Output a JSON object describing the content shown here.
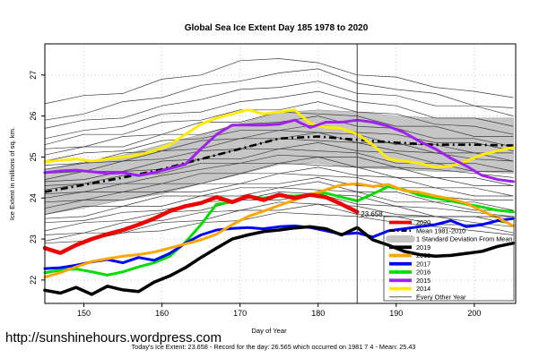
{
  "title": "Global Sea Ice Extent Day 185 1978 to 2020",
  "x_axis": {
    "label": "Day of Year",
    "ticks": [
      150,
      160,
      170,
      180,
      190,
      200
    ]
  },
  "y_axis": {
    "label": "Ice Extent in millions of sq. km.",
    "ticks": [
      22,
      23,
      24,
      25,
      26,
      27
    ]
  },
  "vline_day": 185,
  "annotation": {
    "text": "23.658",
    "day": 185,
    "value": 23.55,
    "color": "#e04040"
  },
  "footer": {
    "url": "http://sunshinehours.wordpress.com",
    "caption": "Today's Ice Extent: 23.658  - Record for the day: 26.565 which occurred on 1981 7 4  - Mean: 25.43"
  },
  "legend": {
    "items": [
      {
        "label": "2020",
        "color": "#f00000",
        "type": "line",
        "width": 4
      },
      {
        "label": "Mean 1981-2010",
        "color": "#000000",
        "type": "dashdot",
        "width": 2.4
      },
      {
        "label": "1 Standard Deviation From Mean",
        "color": "#c6c6c6",
        "type": "band"
      },
      {
        "label": "2019",
        "color": "#000000",
        "type": "line",
        "width": 4
      },
      {
        "label": "2018",
        "color": "#ffa500",
        "type": "line",
        "width": 4
      },
      {
        "label": "2017",
        "color": "#0000ff",
        "type": "line",
        "width": 4
      },
      {
        "label": "2016",
        "color": "#00dd00",
        "type": "line",
        "width": 4
      },
      {
        "label": "2015",
        "color": "#a020f0",
        "type": "line",
        "width": 4
      },
      {
        "label": "2014",
        "color": "#ffec00",
        "type": "line",
        "width": 4
      },
      {
        "label": "Every Other Year",
        "color": "#555555",
        "type": "thin",
        "width": 1
      }
    ]
  },
  "chart_data": {
    "type": "line",
    "title": "Global Sea Ice Extent Day 185 1978 to 2020",
    "xlabel": "Day of Year",
    "ylabel": "Ice Extent in millions of sq. km.",
    "xlim": [
      145,
      205.3
    ],
    "ylim": [
      21.43,
      27.76
    ],
    "grid": true,
    "legend_position": "bottom-right-inside",
    "days": [
      145,
      147,
      149,
      151,
      153,
      155,
      157,
      159,
      161,
      163,
      165,
      167,
      169,
      171,
      173,
      175,
      177,
      179,
      181,
      183,
      185,
      187,
      189,
      191,
      193,
      195,
      197,
      199,
      201,
      203,
      205
    ],
    "band": {
      "name": "1 Standard Deviation From Mean",
      "color": "#c6c6c6",
      "x": [
        145,
        150,
        155,
        160,
        165,
        170,
        175,
        180,
        185,
        190,
        195,
        200,
        205
      ],
      "top": [
        24.7,
        24.88,
        25.05,
        25.3,
        25.55,
        25.82,
        26.08,
        26.15,
        26.1,
        26.0,
        25.95,
        25.95,
        25.95
      ],
      "bottom": [
        23.6,
        23.76,
        23.95,
        24.1,
        24.35,
        24.58,
        24.82,
        24.85,
        24.74,
        24.7,
        24.65,
        24.65,
        24.6
      ]
    },
    "mean": {
      "name": "Mean 1981-2010",
      "color": "#000000",
      "x": [
        145,
        150,
        155,
        160,
        165,
        170,
        175,
        180,
        185,
        190,
        195,
        200,
        205
      ],
      "values": [
        24.15,
        24.32,
        24.5,
        24.7,
        24.95,
        25.2,
        25.45,
        25.5,
        25.42,
        25.35,
        25.3,
        25.3,
        25.28
      ]
    },
    "series": [
      {
        "name": "2014",
        "color": "#ffec00",
        "width": 3,
        "values": [
          24.88,
          24.92,
          24.95,
          24.9,
          24.95,
          25.0,
          25.05,
          25.15,
          25.3,
          25.55,
          25.8,
          25.95,
          26.05,
          26.15,
          26.05,
          26.1,
          26.15,
          25.82,
          25.73,
          25.7,
          25.56,
          25.3,
          24.95,
          24.9,
          24.85,
          24.75,
          24.78,
          24.9,
          25.06,
          25.15,
          25.23
        ]
      },
      {
        "name": "2015",
        "color": "#a020f0",
        "width": 3,
        "values": [
          24.62,
          24.66,
          24.68,
          24.64,
          24.6,
          24.62,
          24.55,
          24.62,
          24.72,
          24.82,
          25.2,
          25.55,
          25.78,
          25.78,
          25.78,
          25.8,
          25.9,
          25.72,
          25.85,
          25.85,
          25.9,
          25.85,
          25.75,
          25.6,
          25.38,
          25.2,
          24.97,
          24.78,
          24.55,
          24.45,
          24.4
        ]
      },
      {
        "name": "2016",
        "color": "#00dd00",
        "width": 3,
        "values": [
          22.18,
          22.24,
          22.27,
          22.2,
          22.12,
          22.2,
          22.32,
          22.42,
          22.58,
          22.92,
          23.35,
          23.85,
          23.9,
          24.05,
          24.0,
          24.05,
          24.05,
          24.08,
          24.12,
          24.02,
          23.93,
          24.1,
          24.28,
          24.2,
          24.07,
          24.0,
          23.93,
          23.85,
          23.78,
          23.7,
          23.66
        ]
      },
      {
        "name": "2017",
        "color": "#0000ff",
        "width": 3,
        "values": [
          22.28,
          22.3,
          22.36,
          22.44,
          22.5,
          22.42,
          22.55,
          22.48,
          22.65,
          22.9,
          23.1,
          23.22,
          23.26,
          23.28,
          23.25,
          23.3,
          23.32,
          23.28,
          23.2,
          23.12,
          23.15,
          23.05,
          23.2,
          23.25,
          23.3,
          23.35,
          23.45,
          23.3,
          23.35,
          23.45,
          23.5
        ]
      },
      {
        "name": "2018",
        "color": "#ffa500",
        "width": 3,
        "values": [
          22.07,
          22.18,
          22.32,
          22.45,
          22.52,
          22.58,
          22.62,
          22.68,
          22.78,
          22.88,
          22.98,
          23.12,
          23.35,
          23.55,
          23.68,
          23.82,
          23.95,
          24.08,
          24.2,
          24.32,
          24.35,
          24.28,
          24.33,
          24.18,
          24.14,
          24.05,
          23.98,
          23.87,
          23.68,
          23.52,
          23.32
        ]
      },
      {
        "name": "2019",
        "color": "#000000",
        "width": 3.5,
        "values": [
          21.75,
          21.68,
          21.82,
          21.65,
          21.85,
          21.76,
          21.72,
          21.95,
          22.1,
          22.3,
          22.55,
          22.78,
          23.0,
          23.1,
          23.18,
          23.22,
          23.27,
          23.3,
          23.25,
          23.1,
          23.28,
          22.98,
          22.85,
          22.7,
          22.62,
          22.58,
          22.6,
          22.65,
          22.7,
          22.82,
          22.9
        ]
      },
      {
        "name": "2020",
        "color": "#f00000",
        "width": 4.5,
        "values": [
          22.78,
          22.66,
          22.85,
          23.0,
          23.12,
          23.22,
          23.35,
          23.5,
          23.68,
          23.8,
          23.88,
          24.02,
          23.9,
          24.05,
          23.95,
          24.08,
          24.0,
          24.08,
          24.02,
          23.85,
          23.658
        ]
      }
    ],
    "other_years": {
      "name": "Every Other Year",
      "color": "#3c3c3c",
      "x": [
        145,
        150,
        155,
        160,
        165,
        170,
        175,
        180,
        185,
        190,
        195,
        200,
        205
      ],
      "lines": [
        [
          26.3,
          26.5,
          26.55,
          26.9,
          27.0,
          27.35,
          27.4,
          27.3,
          27.0,
          26.95,
          26.7,
          26.6,
          26.45
        ],
        [
          25.9,
          26.05,
          26.35,
          26.45,
          26.75,
          26.85,
          27.05,
          27.15,
          26.8,
          26.65,
          26.55,
          26.25,
          26.2
        ],
        [
          25.7,
          25.9,
          25.95,
          26.25,
          26.4,
          26.65,
          26.7,
          26.85,
          26.55,
          26.5,
          26.25,
          26.25,
          26.0
        ],
        [
          25.45,
          25.65,
          25.75,
          26.05,
          26.1,
          26.35,
          26.45,
          26.6,
          26.35,
          26.25,
          25.95,
          25.95,
          25.75
        ],
        [
          25.3,
          25.55,
          25.55,
          25.85,
          25.9,
          26.15,
          26.15,
          26.35,
          26.1,
          26.05,
          25.8,
          25.75,
          25.55
        ],
        [
          25.2,
          25.25,
          25.5,
          25.55,
          25.85,
          25.85,
          26.1,
          26.05,
          26.0,
          25.75,
          25.75,
          25.5,
          25.5
        ],
        [
          25.05,
          25.25,
          25.25,
          25.55,
          25.55,
          25.8,
          25.85,
          26.0,
          25.75,
          25.7,
          25.45,
          25.45,
          25.25
        ],
        [
          24.9,
          25.1,
          25.15,
          25.4,
          25.45,
          25.65,
          25.65,
          25.8,
          25.6,
          25.55,
          25.35,
          25.35,
          25.15
        ],
        [
          24.8,
          24.85,
          25.1,
          25.15,
          25.4,
          25.45,
          25.65,
          25.6,
          25.55,
          25.3,
          25.3,
          25.1,
          25.1
        ],
        [
          24.7,
          24.85,
          24.9,
          25.15,
          25.2,
          25.45,
          25.45,
          25.6,
          25.35,
          25.35,
          25.1,
          25.1,
          24.9
        ],
        [
          24.6,
          24.65,
          24.9,
          24.95,
          25.15,
          25.2,
          25.45,
          25.4,
          25.35,
          25.15,
          25.1,
          24.95,
          24.9
        ],
        [
          24.45,
          24.65,
          24.65,
          24.9,
          24.95,
          25.2,
          25.2,
          25.35,
          25.15,
          25.1,
          24.85,
          24.85,
          24.65
        ],
        [
          24.4,
          24.45,
          24.65,
          24.7,
          24.95,
          24.95,
          25.2,
          25.15,
          25.1,
          24.85,
          24.85,
          24.65,
          24.65
        ],
        [
          24.3,
          24.35,
          24.55,
          24.6,
          24.85,
          24.85,
          25.05,
          25.0,
          25.0,
          24.75,
          24.7,
          24.6,
          24.5
        ],
        [
          24.2,
          24.35,
          24.35,
          24.55,
          24.7,
          24.85,
          24.85,
          25.0,
          24.75,
          24.75,
          24.5,
          24.5,
          24.3
        ],
        [
          24.1,
          24.15,
          24.35,
          24.35,
          24.6,
          24.6,
          24.85,
          24.8,
          24.75,
          24.5,
          24.5,
          24.3,
          24.3
        ],
        [
          24.0,
          24.15,
          24.15,
          24.35,
          24.35,
          24.6,
          24.6,
          24.75,
          24.55,
          24.5,
          24.25,
          24.25,
          24.05
        ],
        [
          23.9,
          23.95,
          24.15,
          24.15,
          24.35,
          24.35,
          24.6,
          24.55,
          24.5,
          24.25,
          24.25,
          24.05,
          24.05
        ],
        [
          23.75,
          23.95,
          23.95,
          24.15,
          24.15,
          24.35,
          24.35,
          24.5,
          24.3,
          24.25,
          24.05,
          23.95,
          23.95
        ],
        [
          23.6,
          23.8,
          23.8,
          24.05,
          24.05,
          24.25,
          24.25,
          24.4,
          24.15,
          24.15,
          23.9,
          23.9,
          23.7
        ],
        [
          23.5,
          23.55,
          23.8,
          23.8,
          24.05,
          24.05,
          24.25,
          24.2,
          24.15,
          23.9,
          23.9,
          23.7,
          23.7
        ],
        [
          23.4,
          23.45,
          23.65,
          23.7,
          23.9,
          23.95,
          24.15,
          24.1,
          24.05,
          23.8,
          23.75,
          23.65,
          23.55
        ],
        [
          23.2,
          23.4,
          23.45,
          23.65,
          23.7,
          23.95,
          23.95,
          24.1,
          23.85,
          23.8,
          23.55,
          23.55,
          23.35
        ],
        [
          23.1,
          23.15,
          23.4,
          23.45,
          23.65,
          23.7,
          23.9,
          23.85,
          23.8,
          23.6,
          23.55,
          23.4,
          23.3
        ],
        [
          22.95,
          23.15,
          23.15,
          23.4,
          23.45,
          23.7,
          23.7,
          23.85,
          23.6,
          23.55,
          23.35,
          23.35,
          23.15
        ],
        [
          22.9,
          22.95,
          23.15,
          23.2,
          23.4,
          23.45,
          23.65,
          23.6,
          23.55,
          23.4,
          23.3,
          23.2,
          23.1
        ]
      ]
    }
  }
}
